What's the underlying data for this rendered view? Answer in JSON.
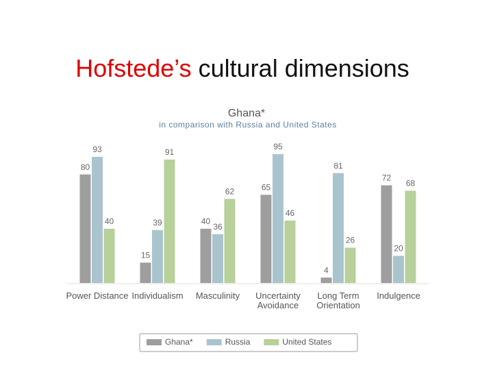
{
  "slide_title": {
    "highlight": "Hofstede’s",
    "rest": "cultural dimensions"
  },
  "chart_data": {
    "type": "bar",
    "title": "Ghana*",
    "subtitle": "in comparison with Russia and United States",
    "categories": [
      "Power Distance",
      "Individualism",
      "Masculinity",
      "Uncertainty Avoidance",
      "Long Term Orientation",
      "Indulgence"
    ],
    "series": [
      {
        "name": "Ghana*",
        "color": "#9e9e9e",
        "values": [
          80,
          15,
          40,
          65,
          4,
          72
        ]
      },
      {
        "name": "Russia",
        "color": "#a9c4cc",
        "values": [
          93,
          39,
          36,
          95,
          81,
          20
        ]
      },
      {
        "name": "United States",
        "color": "#b8d09a",
        "values": [
          40,
          91,
          62,
          46,
          26,
          68
        ]
      }
    ],
    "legend": "bottom"
  }
}
